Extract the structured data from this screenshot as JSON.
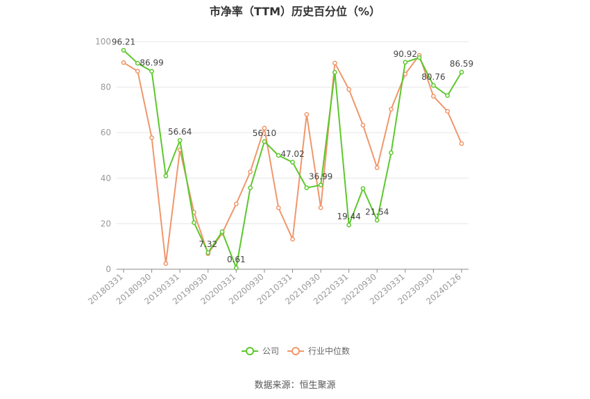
{
  "chart_data": {
    "type": "line",
    "title": "市净率（TTM）历史百分位（%）",
    "source": "数据来源：恒生聚源",
    "ylim": [
      0,
      100
    ],
    "yticks": [
      0,
      20,
      40,
      60,
      80,
      100
    ],
    "grid": true,
    "legend_position": "bottom",
    "x_tick_labels": [
      "20180331",
      "20180930",
      "20190331",
      "20190930",
      "20200331",
      "20200930",
      "20210331",
      "20210930",
      "20220331",
      "20220930",
      "20230331",
      "20230930",
      "20240126"
    ],
    "x": [
      "20180331",
      "20180630",
      "20180930",
      "20181231",
      "20190331",
      "20190630",
      "20190930",
      "20191231",
      "20200331",
      "20200630",
      "20200930",
      "20201231",
      "20210331",
      "20210630",
      "20210930",
      "20211231",
      "20220331",
      "20220630",
      "20220930",
      "20221231",
      "20230331",
      "20230630",
      "20230930",
      "20231231",
      "20240126"
    ],
    "series": [
      {
        "name": "公司",
        "color": "#5cc72b",
        "values": [
          96.21,
          90.5,
          86.99,
          41.0,
          56.64,
          20.5,
          7.32,
          16.5,
          0.61,
          35.8,
          56.1,
          50.0,
          47.02,
          35.8,
          36.99,
          86.5,
          19.44,
          35.5,
          21.54,
          51.2,
          90.92,
          93.0,
          80.76,
          76.3,
          86.59
        ],
        "labels": {
          "0": "96.21",
          "2": "86.99",
          "4": "56.64",
          "6": "7.32",
          "8": "0.61",
          "10": "56.10",
          "12": "47.02",
          "14": "36.99",
          "16": "19.44",
          "18": "21.54",
          "20": "90.92",
          "22": "80.76",
          "24": "86.59"
        }
      },
      {
        "name": "行业中位数",
        "color": "#f0966a",
        "values": [
          90.8,
          87.0,
          57.8,
          2.5,
          52.5,
          25.0,
          6.8,
          15.8,
          28.7,
          42.8,
          62.0,
          27.0,
          13.2,
          68.0,
          27.0,
          90.6,
          79.0,
          63.3,
          44.6,
          70.3,
          85.8,
          94.0,
          76.0,
          69.4,
          55.2
        ]
      }
    ]
  }
}
